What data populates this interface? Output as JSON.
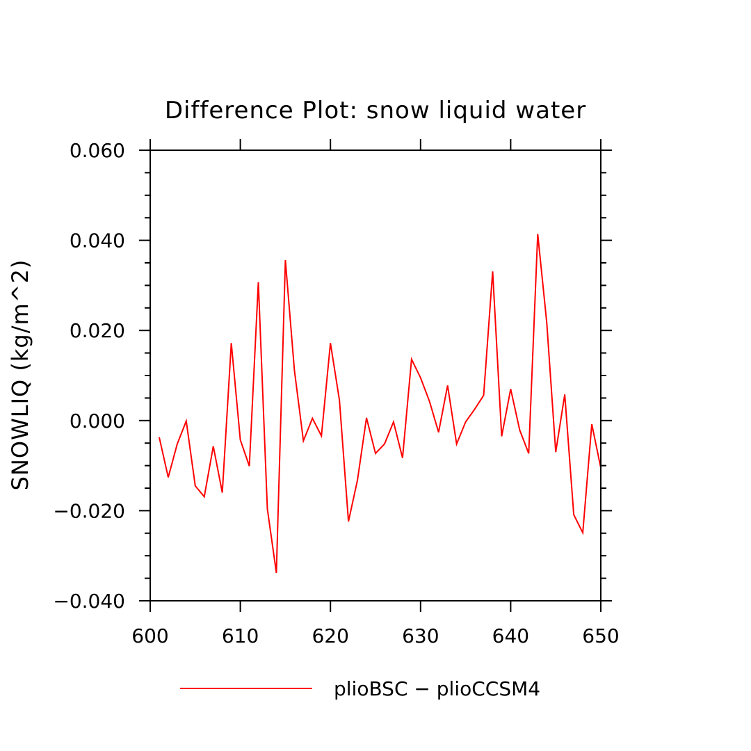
{
  "chart_data": {
    "type": "line",
    "title": "Difference Plot: snow liquid water",
    "xlabel": "",
    "ylabel": "SNOWLIQ   (kg/m^2)",
    "xlim": [
      600,
      650
    ],
    "ylim": [
      -0.04,
      0.06
    ],
    "x_ticks": [
      600,
      610,
      620,
      630,
      640,
      650
    ],
    "x_tick_labels": [
      "600",
      "610",
      "620",
      "630",
      "640",
      "650"
    ],
    "y_ticks": [
      -0.04,
      -0.02,
      0.0,
      0.02,
      0.04,
      0.06
    ],
    "y_tick_labels": [
      "−0.040",
      "−0.020",
      "0.000",
      "0.020",
      "0.040",
      "0.060"
    ],
    "y_minor_step": 0.005,
    "grid": false,
    "legend_position": "bottom-center",
    "series": [
      {
        "name": "plioBSC − plioCCSM4",
        "color": "#ff0000",
        "x": [
          601,
          602,
          603,
          604,
          605,
          606,
          607,
          608,
          609,
          610,
          611,
          612,
          613,
          614,
          615,
          616,
          617,
          618,
          619,
          620,
          621,
          622,
          623,
          624,
          625,
          626,
          627,
          628,
          629,
          630,
          631,
          632,
          633,
          634,
          635,
          636,
          637,
          638,
          639,
          640,
          641,
          642,
          643,
          644,
          645,
          646,
          647,
          648,
          649,
          650
        ],
        "y": [
          -0.0037,
          -0.0126,
          -0.0052,
          -0.0001,
          -0.0145,
          -0.0169,
          -0.0057,
          -0.016,
          0.0172,
          -0.0043,
          -0.0101,
          0.0307,
          -0.0196,
          -0.0338,
          0.0356,
          0.0112,
          -0.0045,
          0.0005,
          -0.0034,
          0.0172,
          0.0045,
          -0.0224,
          -0.0132,
          0.0006,
          -0.0073,
          -0.0052,
          -0.0003,
          -0.0083,
          0.0136,
          0.0095,
          0.0042,
          -0.0026,
          0.0078,
          -0.0052,
          -0.0003,
          0.0025,
          0.0056,
          0.0331,
          -0.0035,
          0.007,
          -0.0021,
          -0.0073,
          0.0414,
          0.0218,
          -0.007,
          0.0058,
          -0.0209,
          -0.0249,
          -0.0008,
          -0.0105
        ]
      }
    ]
  }
}
